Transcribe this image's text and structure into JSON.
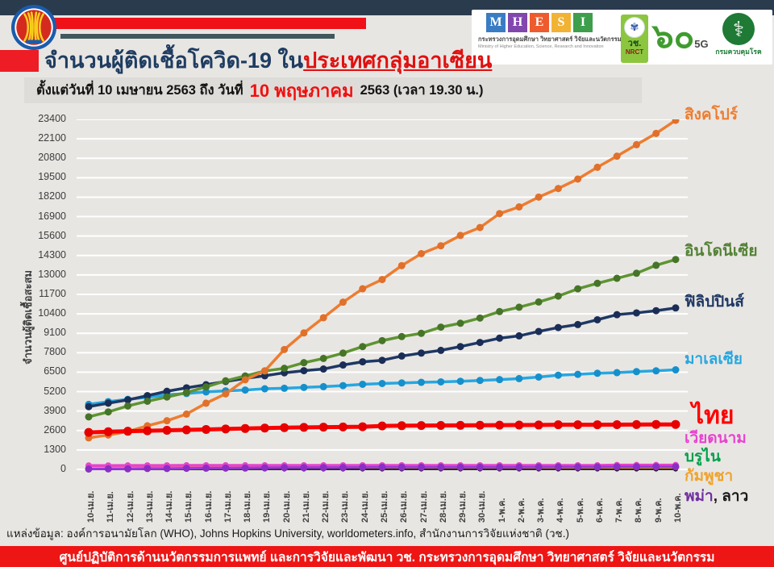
{
  "header": {
    "title_main": "จำนวนผู้ติดเชื้อโควิด-19 ใน",
    "title_highlight": "ประเทศกลุ่มอาเซียน",
    "subtitle_prefix": "ตั้งแต่วันที่ 10 เมษายน 2563 ถึง วันที่",
    "subtitle_date": "10 พฤษภาคม",
    "subtitle_suffix": "2563 (เวลา 19.30 น.)",
    "logos": {
      "mhesi": {
        "letters": [
          {
            "letter": "M",
            "color": "#3a7cc4"
          },
          {
            "letter": "H",
            "color": "#8147ad"
          },
          {
            "letter": "E",
            "color": "#ee5b2e"
          },
          {
            "letter": "S",
            "color": "#f2b233"
          },
          {
            "letter": "I",
            "color": "#3e9e4c"
          }
        ],
        "thai": "กระทรวงการอุดมศึกษา วิทยาศาสตร์ วิจัยและนวัตกรรม",
        "eng": "Ministry of Higher Education, Science, Research and Innovation"
      },
      "nrct": {
        "thai": "วช.",
        "eng": "NRCT"
      },
      "anniversary": {
        "numerals": "๖๐",
        "tag": "5G"
      },
      "ddc": {
        "name": "กรมควบคุมโรค"
      }
    }
  },
  "chart_data": {
    "type": "line",
    "title": "จำนวนผู้ติดเชื้อโควิด-19 ในประเทศกลุ่มอาเซียน",
    "xlabel": "",
    "ylabel": "จำนวนผู้ติดเชื้อสะสม",
    "ylim": [
      0,
      23400
    ],
    "y_ticks": [
      0,
      1300,
      2600,
      3900,
      5200,
      6500,
      7800,
      9100,
      10400,
      11700,
      13000,
      14300,
      15600,
      16900,
      18200,
      19500,
      20800,
      22100,
      23400
    ],
    "grid": "horizontal-white-lines",
    "legend_position": "right",
    "categories": [
      "10-เม.ย.",
      "11-เม.ย.",
      "12-เม.ย.",
      "13-เม.ย.",
      "14-เม.ย.",
      "15-เม.ย.",
      "16-เม.ย.",
      "17-เม.ย.",
      "18-เม.ย.",
      "19-เม.ย.",
      "20-เม.ย.",
      "21-เม.ย.",
      "22-เม.ย.",
      "23-เม.ย.",
      "24-เม.ย.",
      "25-เม.ย.",
      "26-เม.ย.",
      "27-เม.ย.",
      "28-เม.ย.",
      "29-เม.ย.",
      "30-เม.ย.",
      "1-พ.ค.",
      "2-พ.ค.",
      "3-พ.ค.",
      "4-พ.ค.",
      "5-พ.ค.",
      "6-พ.ค.",
      "7-พ.ค.",
      "8-พ.ค.",
      "9-พ.ค.",
      "10-พ.ค."
    ],
    "series": [
      {
        "key": "singapore",
        "name": "สิงคโปร์",
        "color": "#ed7d31",
        "dot_color": "#e0702a",
        "values": [
          2108,
          2299,
          2532,
          2918,
          3252,
          3699,
          4427,
          5050,
          5992,
          6588,
          8014,
          9125,
          10141,
          11178,
          12075,
          12693,
          13624,
          14423,
          14951,
          15641,
          16169,
          17101,
          17548,
          18205,
          18778,
          19410,
          20198,
          20939,
          21707,
          22460,
          23336
        ]
      },
      {
        "key": "indonesia",
        "name": "อินโดนีเซีย",
        "color": "#5e9432",
        "dot_color": "#467527",
        "values": [
          3512,
          3842,
          4241,
          4557,
          4839,
          5136,
          5516,
          5923,
          6248,
          6575,
          6760,
          7135,
          7418,
          7775,
          8211,
          8607,
          8882,
          9096,
          9511,
          9771,
          10118,
          10551,
          10843,
          11192,
          11587,
          12071,
          12438,
          12776,
          13112,
          13645,
          14032
        ]
      },
      {
        "key": "philippines",
        "name": "ฟิลิปปินส์",
        "color": "#1f3864",
        "dot_color": "#1a2d57",
        "values": [
          4195,
          4428,
          4648,
          4932,
          5223,
          5453,
          5660,
          5878,
          6087,
          6259,
          6459,
          6599,
          6710,
          6981,
          7192,
          7294,
          7579,
          7777,
          7958,
          8212,
          8488,
          8772,
          8928,
          9223,
          9485,
          9684,
          10004,
          10343,
          10463,
          10610,
          10794
        ]
      },
      {
        "key": "malaysia",
        "name": "มาเลเซีย",
        "color": "#27a7e0",
        "dot_color": "#1590cc",
        "values": [
          4346,
          4530,
          4683,
          4817,
          4987,
          5072,
          5182,
          5251,
          5305,
          5389,
          5425,
          5482,
          5532,
          5603,
          5691,
          5742,
          5780,
          5820,
          5851,
          5891,
          5945,
          6002,
          6071,
          6176,
          6298,
          6353,
          6428,
          6467,
          6535,
          6589,
          6656
        ]
      },
      {
        "key": "thailand",
        "name": "ไทย",
        "color": "#fa0000",
        "dot_color": "#e60000",
        "values": [
          2473,
          2518,
          2551,
          2579,
          2613,
          2643,
          2672,
          2700,
          2733,
          2765,
          2792,
          2811,
          2826,
          2839,
          2854,
          2907,
          2922,
          2931,
          2938,
          2947,
          2954,
          2960,
          2966,
          2969,
          2987,
          2988,
          2989,
          2992,
          3000,
          3009,
          3009
        ]
      },
      {
        "key": "vietnam",
        "name": "เวียดนาม",
        "color": "#e843ce",
        "dot_color": "#e843ce",
        "values": [
          257,
          258,
          260,
          262,
          266,
          267,
          268,
          268,
          268,
          268,
          268,
          268,
          268,
          268,
          270,
          270,
          270,
          270,
          270,
          270,
          270,
          270,
          270,
          271,
          271,
          271,
          271,
          288,
          288,
          288,
          288
        ]
      },
      {
        "key": "brunei",
        "name": "บรูไน",
        "color": "#00a14b",
        "dot_color": "#00a14b",
        "values": [
          136,
          136,
          136,
          136,
          138,
          138,
          138,
          138,
          138,
          138,
          138,
          138,
          138,
          138,
          138,
          138,
          138,
          138,
          139,
          139,
          139,
          139,
          140,
          140,
          141,
          141,
          141,
          141,
          141,
          141,
          141
        ]
      },
      {
        "key": "cambodia",
        "name": "กัมพูชา",
        "color": "#f0a32a",
        "dot_color": "#f0a32a",
        "values": [
          119,
          120,
          122,
          122,
          122,
          122,
          122,
          122,
          122,
          122,
          122,
          122,
          122,
          122,
          122,
          122,
          122,
          122,
          122,
          122,
          122,
          122,
          122,
          122,
          122,
          122,
          122,
          122,
          122,
          122,
          122
        ]
      },
      {
        "key": "myanmar",
        "name": "พม่า",
        "color": "#9a3bd4",
        "dot_color": "#8a2fc4",
        "values": [
          27,
          38,
          41,
          62,
          63,
          74,
          85,
          88,
          94,
          111,
          119,
          121,
          123,
          127,
          144,
          146,
          146,
          146,
          150,
          150,
          151,
          151,
          151,
          155,
          161,
          161,
          161,
          176,
          177,
          178,
          178
        ]
      },
      {
        "key": "laos",
        "name": "ลาว",
        "color": "#1a1a1a",
        "dot_color": "#1a1a1a",
        "values": [
          16,
          16,
          19,
          19,
          19,
          19,
          19,
          19,
          19,
          19,
          19,
          19,
          19,
          19,
          19,
          19,
          19,
          19,
          19,
          19,
          19,
          19,
          19,
          19,
          19,
          19,
          19,
          19,
          19,
          19,
          19
        ]
      }
    ],
    "legend": [
      {
        "key": "singapore",
        "label": "สิงคโปร์",
        "color": "#ed7d31"
      },
      {
        "key": "indonesia",
        "label": "อินโดนีเซีย",
        "color": "#538135"
      },
      {
        "key": "philippines",
        "label": "ฟิลิปปินส์",
        "color": "#1f3864"
      },
      {
        "key": "malaysia",
        "label": "มาเลเซีย",
        "color": "#27a7e0"
      },
      {
        "key": "thailand",
        "label": "ไทย",
        "color": "#ff0000",
        "size": "large"
      },
      {
        "key": "vietnam",
        "label": "เวียดนาม",
        "color": "#e843ce"
      },
      {
        "key": "brunei",
        "label": "บรูไน",
        "color": "#00a14b"
      },
      {
        "key": "cambodia",
        "label": "กัมพูชา",
        "color": "#f0a32a"
      },
      {
        "key": "myanmar_laos",
        "parts": [
          {
            "text": "พม่า",
            "color": "#7030a0"
          },
          {
            "text": ", ลาว",
            "color": "#1a1a1a"
          }
        ]
      }
    ]
  },
  "source_line": "แหล่งข้อมูล: องค์การอนามัยโลก (WHO), Johns Hopkins University, worldometers.info, สำนักงานการวิจัยแห่งชาติ (วช.)",
  "footer": "ศูนย์ปฏิบัติการด้านนวัตกรรมการแพทย์ และการวิจัยและพัฒนา  วช.   กระทรวงการอุดมศึกษา วิทยาศาสตร์ วิจัยและนวัตกรรม"
}
